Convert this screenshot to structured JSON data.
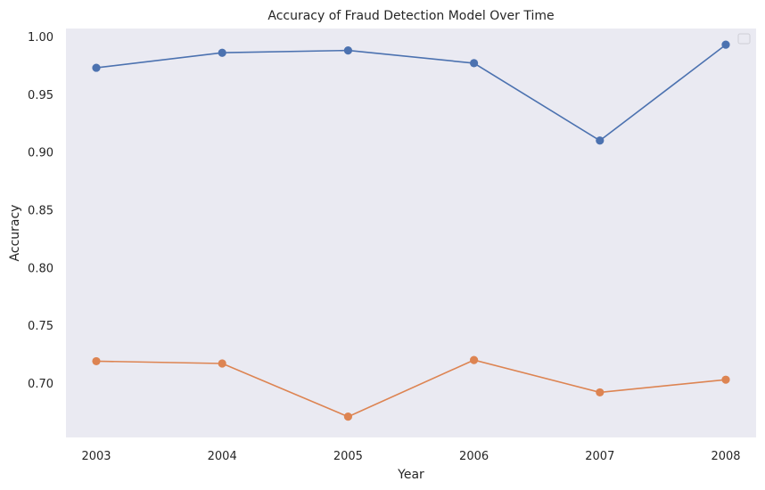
{
  "chart_data": {
    "type": "line",
    "title": "Accuracy of Fraud Detection Model Over Time",
    "xlabel": "Year",
    "ylabel": "Accuracy",
    "x": [
      2003,
      2004,
      2005,
      2006,
      2007,
      2008
    ],
    "x_tick_labels": [
      "2003",
      "2004",
      "2005",
      "2006",
      "2007",
      "2008"
    ],
    "ylim": [
      0.653,
      1.007
    ],
    "y_ticks": [
      0.7,
      0.75,
      0.8,
      0.85,
      0.9,
      0.95,
      1.0
    ],
    "y_tick_labels": [
      "0.70",
      "0.75",
      "0.80",
      "0.85",
      "0.90",
      "0.95",
      "1.00"
    ],
    "grid": false,
    "legend": {
      "placement": "top-right",
      "entries": []
    },
    "background_color": "#eaeaf2",
    "series": [
      {
        "color": "#4c72b0",
        "marker": "circle",
        "values": [
          0.973,
          0.986,
          0.988,
          0.977,
          0.91,
          0.993
        ]
      },
      {
        "color": "#dd8452",
        "marker": "circle",
        "values": [
          0.719,
          0.717,
          0.671,
          0.72,
          0.692,
          0.703
        ]
      }
    ]
  }
}
